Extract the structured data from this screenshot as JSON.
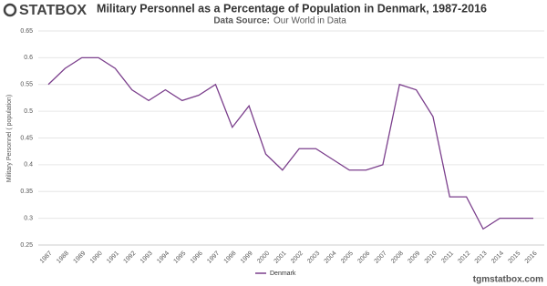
{
  "logo": "STATBOX",
  "chart_data": {
    "type": "line",
    "title": "Military Personnel as a Percentage of Population in Denmark, 1987-2016",
    "source_label": "Data Source:",
    "source": "Our World in Data",
    "y_label": "Military Personnel ( population)",
    "categories": [
      "1987",
      "1988",
      "1989",
      "1990",
      "1991",
      "1992",
      "1993",
      "1994",
      "1995",
      "1996",
      "1997",
      "1998",
      "1999",
      "2000",
      "2001",
      "2002",
      "2003",
      "2004",
      "2005",
      "2006",
      "2007",
      "2008",
      "2009",
      "2010",
      "2011",
      "2012",
      "2013",
      "2014",
      "2015",
      "2016"
    ],
    "series": [
      {
        "name": "Denmark",
        "color": "#7b3f8c",
        "values": [
          0.55,
          0.58,
          0.6,
          0.6,
          0.58,
          0.54,
          0.52,
          0.54,
          0.52,
          0.53,
          0.55,
          0.47,
          0.51,
          0.42,
          0.39,
          0.43,
          0.43,
          0.41,
          0.39,
          0.39,
          0.4,
          0.55,
          0.54,
          0.49,
          0.34,
          0.34,
          0.28,
          0.3,
          0.3,
          0.3
        ]
      }
    ],
    "ylim": [
      0.25,
      0.65
    ],
    "yticks": [
      0.25,
      0.3,
      0.35,
      0.4,
      0.45,
      0.5,
      0.55,
      0.6,
      0.65
    ],
    "grid": true,
    "legend": "bottom"
  },
  "footer": "tgmstatbox.com"
}
